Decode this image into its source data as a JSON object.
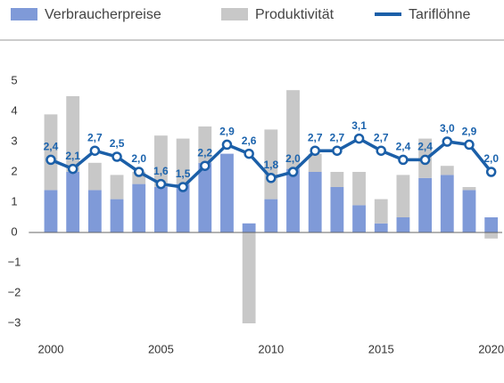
{
  "chart_data": {
    "type": "bar",
    "x": [
      2000,
      2001,
      2002,
      2003,
      2004,
      2005,
      2006,
      2007,
      2008,
      2009,
      2010,
      2011,
      2012,
      2013,
      2014,
      2015,
      2016,
      2017,
      2018,
      2019,
      2020
    ],
    "series": [
      {
        "name": "Verbraucherpreise",
        "type": "bar",
        "color": "#7f9ad8",
        "values": [
          1.4,
          2.0,
          1.4,
          1.1,
          1.6,
          1.5,
          1.6,
          2.3,
          2.6,
          0.3,
          1.1,
          2.1,
          2.0,
          1.5,
          0.9,
          0.3,
          0.5,
          1.8,
          1.9,
          1.4,
          0.5
        ]
      },
      {
        "name": "Produktivität",
        "type": "bar",
        "color": "#c8c8c8",
        "values": [
          2.5,
          2.5,
          0.9,
          0.8,
          0.4,
          1.7,
          1.5,
          1.2,
          0.0,
          -3.0,
          2.3,
          2.6,
          0.6,
          0.5,
          1.1,
          0.8,
          1.4,
          1.3,
          0.3,
          0.1,
          -0.2
        ]
      },
      {
        "name": "Tariflöhne",
        "type": "line",
        "color": "#1b5fa8",
        "values": [
          2.4,
          2.1,
          2.7,
          2.5,
          2.0,
          1.6,
          1.5,
          2.2,
          2.9,
          2.6,
          1.8,
          2.0,
          2.7,
          2.7,
          3.1,
          2.7,
          2.4,
          2.4,
          3.0,
          2.9,
          2.0
        ],
        "value_labels": [
          "2,4",
          "2,1",
          "2,7",
          "2,5",
          "2,0",
          "1,6",
          "1,5",
          "2,2",
          "2,9",
          "2,6",
          "1,8",
          "2,0",
          "2,7",
          "2,7",
          "3,1",
          "2,7",
          "2,4",
          "2,4",
          "3,0",
          "2,9",
          "2,0"
        ]
      }
    ],
    "xlim": [
      1999,
      2020.5
    ],
    "xticks": [
      2000,
      2005,
      2010,
      2015,
      2020
    ],
    "ylim": [
      -3,
      5
    ],
    "yticks": [
      {
        "value": -3,
        "label": "−3"
      },
      {
        "value": -2,
        "label": "−2"
      },
      {
        "value": -1,
        "label": "−1"
      },
      0,
      1,
      2,
      3,
      4,
      5
    ]
  }
}
